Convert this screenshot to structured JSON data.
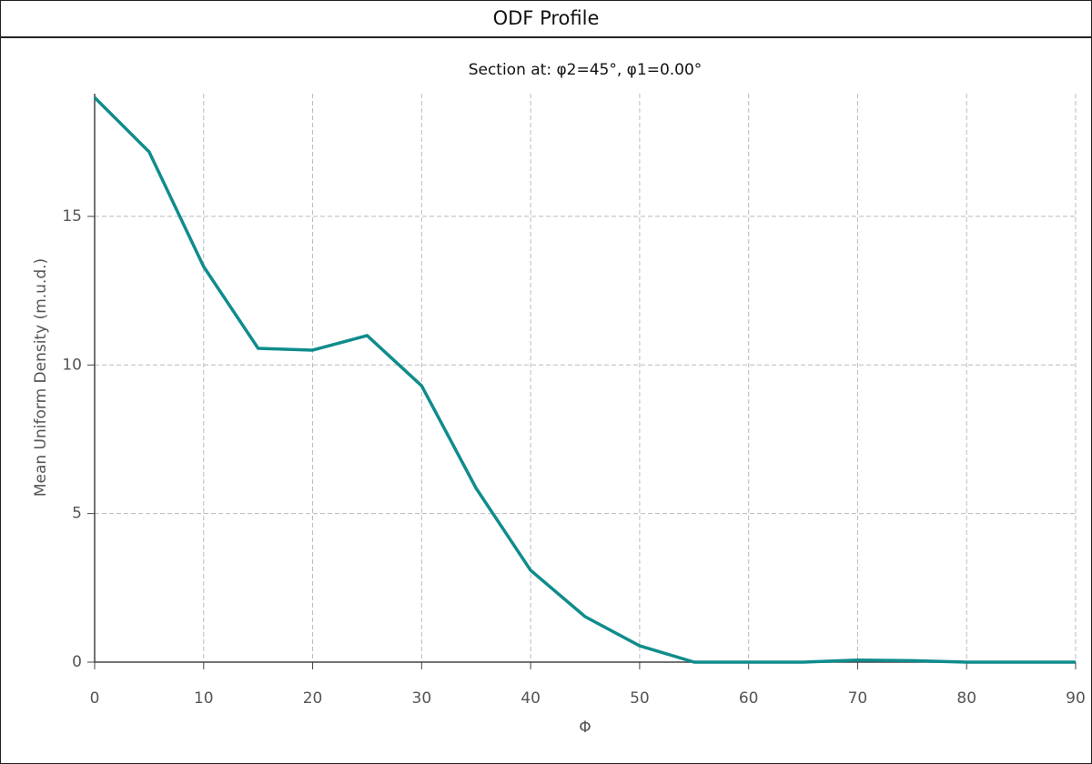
{
  "window": {
    "title": "ODF Profile"
  },
  "chart_data": {
    "type": "line",
    "title": "Section at: φ2=45°, φ1=0.00°",
    "x_label": "Φ",
    "y_label": "Mean Uniform Density (m.u.d.)",
    "x": [
      0,
      5,
      10,
      15,
      20,
      25,
      30,
      35,
      40,
      45,
      50,
      55,
      60,
      65,
      70,
      75,
      80,
      85,
      90
    ],
    "series": [
      {
        "color": "#108c8c",
        "values": [
          19.0,
          17.17,
          13.31,
          10.56,
          10.5,
          10.99,
          9.3,
          5.85,
          3.09,
          1.53,
          0.55,
          0,
          0,
          0,
          0.07,
          0.05,
          0,
          0,
          0
        ]
      }
    ],
    "xlim": [
      0,
      90
    ],
    "xticks": [
      0,
      10,
      20,
      30,
      40,
      50,
      60,
      70,
      80,
      90
    ],
    "ylim": [
      0,
      19.13
    ],
    "yticks": [
      0,
      5,
      10,
      15
    ],
    "grid": true
  }
}
